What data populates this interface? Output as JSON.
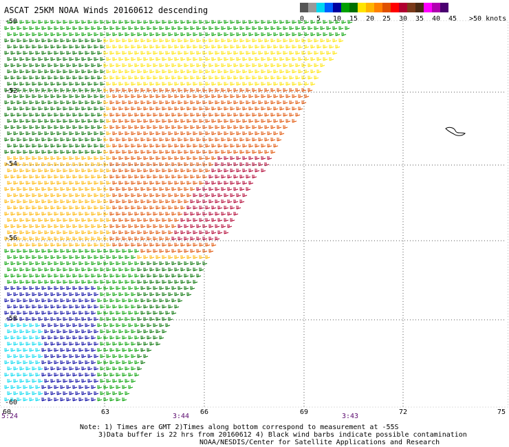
{
  "title": "ASCAT 25KM NOAA Winds 20160612 descending",
  "speed_scale": {
    "colors": [
      "#555555",
      "#999999",
      "#00d8f0",
      "#0060ff",
      "#0000a0",
      "#00a000",
      "#007000",
      "#ffe400",
      "#ffb400",
      "#ff8000",
      "#e05000",
      "#ff0000",
      "#b00030",
      "#7a3a1a",
      "#4a2a14",
      "#ff00ff",
      "#b000b0",
      "#4a0070"
    ],
    "labels": [
      "0",
      "5",
      "10",
      "15",
      "20",
      "25",
      "30",
      "35",
      "40",
      "45",
      ">50 knots"
    ]
  },
  "lat_labels": [
    "-50",
    "-52",
    "-54",
    "-56",
    "-58",
    "-60"
  ],
  "lon_labels": [
    "60",
    "63",
    "66",
    "69",
    "72",
    "75"
  ],
  "time_labels": [
    "5:24",
    "3:44",
    "3:43"
  ],
  "notes": {
    "line1": "Note: 1) Times are GMT 2)Times along bottom correspond to measurement at -55S",
    "line2": "3)Data buffer is 22 hrs from 20160612 4) Black wind barbs indicate possible contamination",
    "line3": "NOAA/NESDIS/Center for Satellite Applications and Research"
  },
  "map": {
    "lat_range": [
      -60,
      -50
    ],
    "lon_range": [
      60,
      75
    ],
    "grid": "dotted",
    "swath_color_by_speed": [
      "#007000",
      "#00a000",
      "#0000a0",
      "#00d8f0",
      "#ffe400",
      "#ffb400",
      "#e05000",
      "#b00030"
    ]
  }
}
